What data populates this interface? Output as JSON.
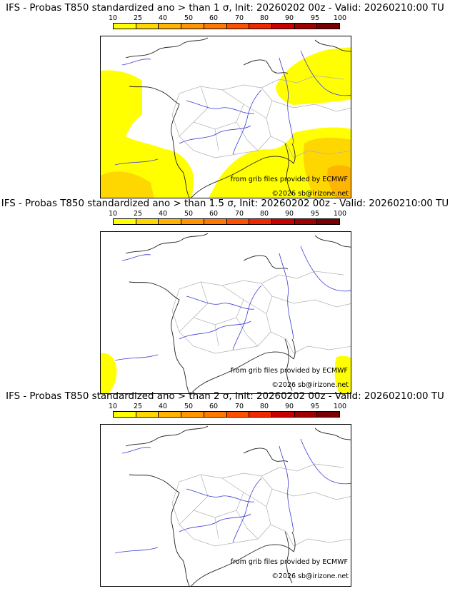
{
  "colorbar": {
    "labels": [
      "10",
      "25",
      "40",
      "50",
      "60",
      "70",
      "80",
      "90",
      "95",
      "100"
    ],
    "colors": [
      "#ffff00",
      "#ffd700",
      "#ffb400",
      "#ff9600",
      "#ff7800",
      "#ff5000",
      "#f02800",
      "#c80000",
      "#a00000",
      "#780000"
    ]
  },
  "panels": [
    {
      "title": "IFS - Probas T850  standardized ano > than 1 σ, Init: 20260202 00z - Valid: 20260210:00 TU",
      "credit_source": "from grib files provided by ECMWF",
      "credit_copyright": "©2026 sb@irizone.net"
    },
    {
      "title": "IFS - Probas T850  standardized ano > than 1.5 σ, Init: 20260202 00z - Valid: 20260210:00 TU",
      "credit_source": "from grib files provided by ECMWF",
      "credit_copyright": "©2026 sb@irizone.net"
    },
    {
      "title": "IFS - Probas T850  standardized ano > than 2 σ, Init: 20260202 00z - Valid: 20260210:00 TU",
      "credit_source": "from grib files provided by ECMWF",
      "credit_copyright": "©2026 sb@irizone.net"
    }
  ],
  "map_colors": {
    "coast": "#222222",
    "rivers": "#3b3bd6",
    "borders": "#b0b0b0"
  }
}
